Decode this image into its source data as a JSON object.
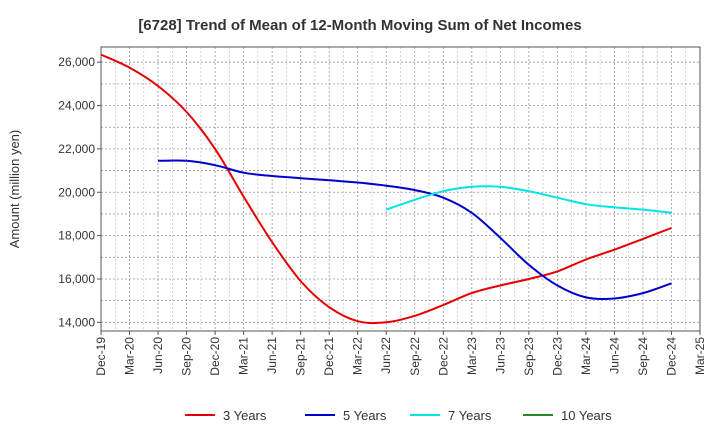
{
  "chart_data": {
    "type": "line",
    "title": "[6728]  Trend of Mean of 12-Month Moving Sum of Net Incomes",
    "ylabel": "Amount (million yen)",
    "xlabel": "",
    "x_ticks": [
      "Dec-19",
      "Mar-20",
      "Jun-20",
      "Sep-20",
      "Dec-20",
      "Mar-21",
      "Jun-21",
      "Sep-21",
      "Dec-21",
      "Mar-22",
      "Jun-22",
      "Sep-22",
      "Dec-22",
      "Mar-23",
      "Jun-23",
      "Sep-23",
      "Dec-23",
      "Mar-24",
      "Jun-24",
      "Sep-24",
      "Dec-24",
      "Mar-25"
    ],
    "y_ticks": [
      "14,000",
      "16,000",
      "18,000",
      "20,000",
      "22,000",
      "24,000",
      "26,000"
    ],
    "ylim": [
      13600,
      26700
    ],
    "grid": true,
    "legend_position": "bottom",
    "series": [
      {
        "name": "3 Years",
        "color": "#e60000",
        "points": [
          [
            "Dec-19",
            26350
          ],
          [
            "Mar-20",
            25750
          ],
          [
            "Jun-20",
            24900
          ],
          [
            "Sep-20",
            23700
          ],
          [
            "Dec-20",
            22000
          ],
          [
            "Mar-21",
            19800
          ],
          [
            "Jun-21",
            17700
          ],
          [
            "Sep-21",
            15900
          ],
          [
            "Dec-21",
            14700
          ],
          [
            "Mar-22",
            14050
          ],
          [
            "Jun-22",
            14000
          ],
          [
            "Sep-22",
            14300
          ],
          [
            "Dec-22",
            14800
          ],
          [
            "Mar-23",
            15350
          ],
          [
            "Jun-23",
            15700
          ],
          [
            "Sep-23",
            16000
          ],
          [
            "Dec-23",
            16350
          ],
          [
            "Mar-24",
            16900
          ],
          [
            "Jun-24",
            17350
          ],
          [
            "Sep-24",
            17850
          ],
          [
            "Dec-24",
            18350
          ]
        ]
      },
      {
        "name": "5 Years",
        "color": "#0000cc",
        "points": [
          [
            "Jun-20",
            21450
          ],
          [
            "Sep-20",
            21450
          ],
          [
            "Dec-20",
            21250
          ],
          [
            "Mar-21",
            20900
          ],
          [
            "Jun-21",
            20750
          ],
          [
            "Sep-21",
            20650
          ],
          [
            "Dec-21",
            20550
          ],
          [
            "Mar-22",
            20450
          ],
          [
            "Jun-22",
            20300
          ],
          [
            "Sep-22",
            20100
          ],
          [
            "Dec-22",
            19750
          ],
          [
            "Mar-23",
            19050
          ],
          [
            "Jun-23",
            17900
          ],
          [
            "Sep-23",
            16650
          ],
          [
            "Dec-23",
            15700
          ],
          [
            "Mar-24",
            15150
          ],
          [
            "Jun-24",
            15100
          ],
          [
            "Sep-24",
            15350
          ],
          [
            "Dec-24",
            15800
          ]
        ]
      },
      {
        "name": "7 Years",
        "color": "#00e5e5",
        "points": [
          [
            "Jun-22",
            19200
          ],
          [
            "Sep-22",
            19650
          ],
          [
            "Dec-22",
            20050
          ],
          [
            "Mar-23",
            20250
          ],
          [
            "Jun-23",
            20250
          ],
          [
            "Sep-23",
            20050
          ],
          [
            "Dec-23",
            19750
          ],
          [
            "Mar-24",
            19450
          ],
          [
            "Jun-24",
            19300
          ],
          [
            "Sep-24",
            19200
          ],
          [
            "Dec-24",
            19050
          ]
        ]
      },
      {
        "name": "10 Years",
        "color": "#228b22",
        "points": []
      }
    ]
  }
}
